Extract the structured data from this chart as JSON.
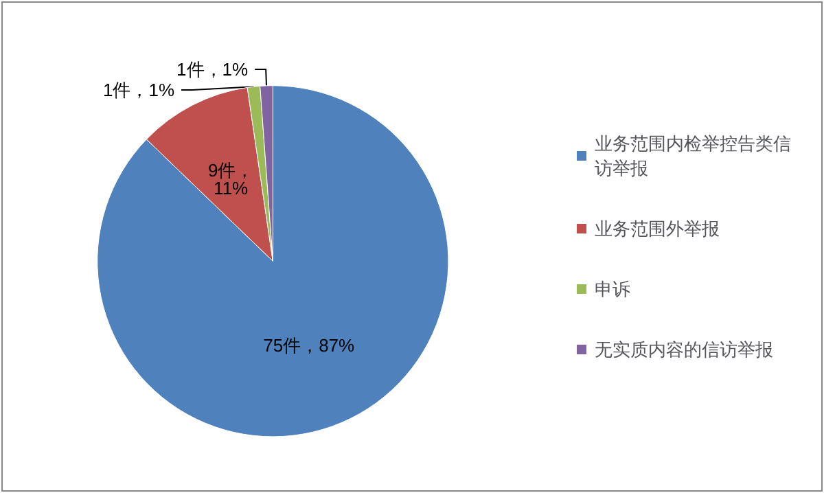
{
  "chart_data": {
    "type": "pie",
    "categories": [
      "业务范围内检举控告类信访举报",
      "业务范围外举报",
      "申诉",
      "无实质内容的信访举报"
    ],
    "values": [
      75,
      9,
      1,
      1
    ],
    "colors": [
      "#4f81bd",
      "#c0504d",
      "#9bbb59",
      "#8064a2"
    ],
    "value_labels": [
      "75件，87%",
      "9件，\n11%",
      "1件，1%",
      "1件，1%"
    ],
    "legend": "right"
  }
}
